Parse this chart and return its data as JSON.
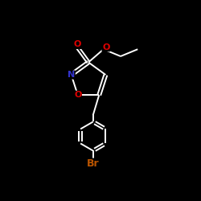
{
  "background_color": "#000000",
  "bond_color": "#ffffff",
  "atom_colors": {
    "O": "#dd0000",
    "N": "#3333cc",
    "Br": "#bb5500",
    "C": "#ffffff"
  },
  "lw": 1.4,
  "fig_size": [
    2.5,
    2.5
  ],
  "dpi": 100
}
